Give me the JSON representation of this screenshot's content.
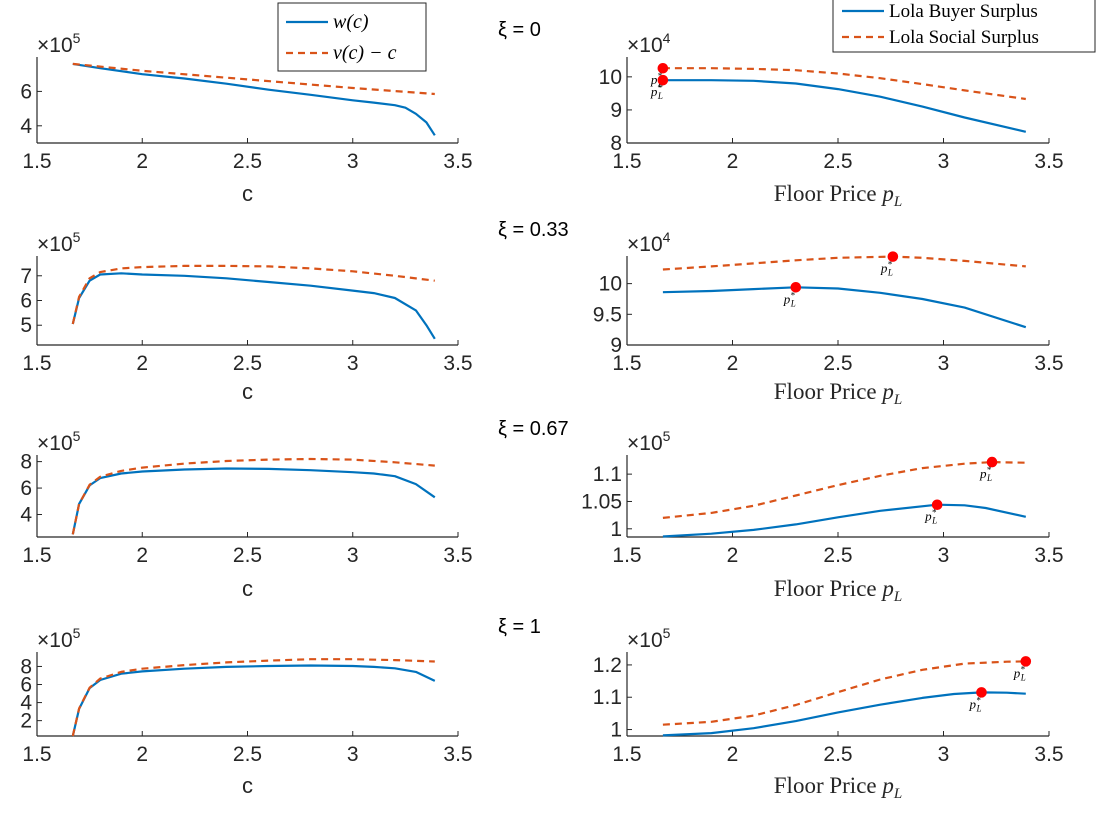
{
  "figure": {
    "colors": {
      "blue": "#0072BD",
      "orange": "#D95319",
      "marker": "#FF0000",
      "axis": "#262626"
    },
    "titles": [
      "ξ = 0",
      "ξ = 0.33",
      "ξ = 0.67",
      "ξ = 1"
    ],
    "left_xlabel": "c",
    "right_xlabel_text": "Floor Price ",
    "right_xlabel_var": "p",
    "right_xlabel_sub": "L",
    "annotation_base": "p",
    "annotation_star": "*",
    "annotation_sub": "L",
    "left_legend": [
      {
        "label": "w(c)",
        "style": "solid",
        "color": "#0072BD"
      },
      {
        "label": "v(c) − c",
        "style": "dashed",
        "color": "#D95319"
      }
    ],
    "right_legend": [
      {
        "label": "Lola Buyer Surplus",
        "style": "solid",
        "color": "#0072BD"
      },
      {
        "label": "Lola Social Surplus",
        "style": "dashed",
        "color": "#D95319"
      }
    ]
  },
  "chart_data": [
    {
      "type": "line",
      "panel": "row1-left",
      "title": "ξ = 0",
      "xlabel": "c",
      "ylabel": "",
      "xlim": [
        1.5,
        3.5
      ],
      "ylim": [
        300000,
        800000
      ],
      "xticks": [
        1.5,
        2,
        2.5,
        3,
        3.5
      ],
      "xtick_labels": [
        "1.5",
        "2",
        "2.5",
        "3",
        "3.5"
      ],
      "yticks": [
        400000,
        600000
      ],
      "ytick_labels": [
        "4",
        "6"
      ],
      "exponent_label": "×10",
      "exponent": "5",
      "series": [
        {
          "name": "w(c)",
          "style": "solid",
          "color": "#0072BD",
          "x": [
            1.67,
            1.8,
            2.0,
            2.2,
            2.4,
            2.6,
            2.8,
            3.0,
            3.1,
            3.2,
            3.25,
            3.3,
            3.35,
            3.39
          ],
          "y": [
            760000,
            735000,
            700000,
            675000,
            645000,
            610000,
            580000,
            548000,
            535000,
            520000,
            505000,
            470000,
            420000,
            345000
          ]
        },
        {
          "name": "v(c) − c",
          "style": "dashed",
          "color": "#D95319",
          "x": [
            1.67,
            2.0,
            2.5,
            3.0,
            3.39
          ],
          "y": [
            760000,
            720000,
            670000,
            620000,
            585000
          ]
        }
      ]
    },
    {
      "type": "line",
      "panel": "row1-right",
      "title": "ξ = 0",
      "xlabel": "Floor Price p_L",
      "ylabel": "",
      "xlim": [
        1.5,
        3.5
      ],
      "ylim": [
        80000,
        106000
      ],
      "xticks": [
        1.5,
        2,
        2.5,
        3,
        3.5
      ],
      "xtick_labels": [
        "1.5",
        "2",
        "2.5",
        "3",
        "3.5"
      ],
      "yticks": [
        80000,
        90000,
        100000
      ],
      "ytick_labels": [
        "8",
        "9",
        "10"
      ],
      "exponent_label": "×10",
      "exponent": "4",
      "series": [
        {
          "name": "Lola Buyer Surplus",
          "style": "solid",
          "color": "#0072BD",
          "x": [
            1.67,
            1.9,
            2.1,
            2.3,
            2.5,
            2.7,
            2.9,
            3.1,
            3.39
          ],
          "y": [
            99000,
            99000,
            98800,
            98000,
            96300,
            94000,
            91000,
            87700,
            83400
          ]
        },
        {
          "name": "Lola Social Surplus",
          "style": "dashed",
          "color": "#D95319",
          "x": [
            1.67,
            1.9,
            2.1,
            2.3,
            2.5,
            2.7,
            2.9,
            3.1,
            3.39
          ],
          "y": [
            102600,
            102600,
            102400,
            102000,
            101000,
            99600,
            97800,
            95900,
            93300
          ]
        }
      ],
      "markers": [
        {
          "x": 1.67,
          "y": 102600
        },
        {
          "x": 1.67,
          "y": 99000
        }
      ]
    },
    {
      "type": "line",
      "panel": "row2-left",
      "title": "ξ = 0.33",
      "xlabel": "c",
      "ylabel": "",
      "xlim": [
        1.5,
        3.5
      ],
      "ylim": [
        420000,
        780000
      ],
      "xticks": [
        1.5,
        2,
        2.5,
        3,
        3.5
      ],
      "xtick_labels": [
        "1.5",
        "2",
        "2.5",
        "3",
        "3.5"
      ],
      "yticks": [
        500000,
        600000,
        700000
      ],
      "ytick_labels": [
        "5",
        "6",
        "7"
      ],
      "exponent_label": "×10",
      "exponent": "5",
      "series": [
        {
          "name": "w(c)",
          "style": "solid",
          "color": "#0072BD",
          "x": [
            1.67,
            1.7,
            1.75,
            1.8,
            1.9,
            2.0,
            2.2,
            2.4,
            2.6,
            2.8,
            3.0,
            3.1,
            3.2,
            3.3,
            3.35,
            3.39
          ],
          "y": [
            505000,
            610000,
            680000,
            705000,
            710000,
            705000,
            700000,
            690000,
            675000,
            660000,
            640000,
            630000,
            610000,
            560000,
            500000,
            445000
          ]
        },
        {
          "name": "v(c) − c",
          "style": "dashed",
          "color": "#D95319",
          "x": [
            1.67,
            1.7,
            1.75,
            1.8,
            1.9,
            2.0,
            2.2,
            2.4,
            2.6,
            2.8,
            3.0,
            3.2,
            3.39
          ],
          "y": [
            505000,
            615000,
            690000,
            715000,
            730000,
            735000,
            740000,
            740000,
            738000,
            730000,
            718000,
            700000,
            680000
          ]
        }
      ]
    },
    {
      "type": "line",
      "panel": "row2-right",
      "title": "ξ = 0.33",
      "xlabel": "Floor Price p_L",
      "ylabel": "",
      "xlim": [
        1.5,
        3.5
      ],
      "ylim": [
        90000,
        104500
      ],
      "xticks": [
        1.5,
        2,
        2.5,
        3,
        3.5
      ],
      "xtick_labels": [
        "1.5",
        "2",
        "2.5",
        "3",
        "3.5"
      ],
      "yticks": [
        90000,
        95000,
        100000
      ],
      "ytick_labels": [
        "9",
        "9.5",
        "10"
      ],
      "exponent_label": "×10",
      "exponent": "4",
      "series": [
        {
          "name": "Lola Buyer Surplus",
          "style": "solid",
          "color": "#0072BD",
          "x": [
            1.67,
            1.9,
            2.1,
            2.3,
            2.5,
            2.7,
            2.9,
            3.1,
            3.39
          ],
          "y": [
            98600,
            98800,
            99100,
            99400,
            99200,
            98500,
            97500,
            96100,
            92900
          ]
        },
        {
          "name": "Lola Social Surplus",
          "style": "dashed",
          "color": "#D95319",
          "x": [
            1.67,
            1.9,
            2.1,
            2.3,
            2.5,
            2.76,
            2.9,
            3.1,
            3.39
          ],
          "y": [
            102300,
            102800,
            103300,
            103800,
            104200,
            104400,
            104200,
            103700,
            102800
          ]
        }
      ],
      "markers": [
        {
          "x": 2.3,
          "y": 99400
        },
        {
          "x": 2.76,
          "y": 104400
        }
      ]
    },
    {
      "type": "line",
      "panel": "row3-left",
      "title": "ξ = 0.67",
      "xlabel": "c",
      "ylabel": "",
      "xlim": [
        1.5,
        3.5
      ],
      "ylim": [
        230000,
        850000
      ],
      "xticks": [
        1.5,
        2,
        2.5,
        3,
        3.5
      ],
      "xtick_labels": [
        "1.5",
        "2",
        "2.5",
        "3",
        "3.5"
      ],
      "yticks": [
        400000,
        600000,
        800000
      ],
      "ytick_labels": [
        "4",
        "6",
        "8"
      ],
      "exponent_label": "×10",
      "exponent": "5",
      "series": [
        {
          "name": "w(c)",
          "style": "solid",
          "color": "#0072BD",
          "x": [
            1.67,
            1.7,
            1.75,
            1.8,
            1.9,
            2.0,
            2.2,
            2.4,
            2.6,
            2.8,
            3.0,
            3.1,
            3.2,
            3.3,
            3.39
          ],
          "y": [
            250000,
            480000,
            620000,
            675000,
            710000,
            725000,
            740000,
            748000,
            745000,
            735000,
            720000,
            710000,
            690000,
            630000,
            530000
          ]
        },
        {
          "name": "v(c) − c",
          "style": "dashed",
          "color": "#D95319",
          "x": [
            1.67,
            1.7,
            1.75,
            1.8,
            1.9,
            2.0,
            2.2,
            2.4,
            2.6,
            2.8,
            3.0,
            3.2,
            3.39
          ],
          "y": [
            250000,
            480000,
            625000,
            685000,
            730000,
            755000,
            785000,
            805000,
            815000,
            820000,
            815000,
            795000,
            770000
          ]
        }
      ]
    },
    {
      "type": "line",
      "panel": "row3-right",
      "title": "ξ = 0.67",
      "xlabel": "Floor Price p_L",
      "ylabel": "",
      "xlim": [
        1.5,
        3.5
      ],
      "ylim": [
        98500,
        113500
      ],
      "xticks": [
        1.5,
        2,
        2.5,
        3,
        3.5
      ],
      "xtick_labels": [
        "1.5",
        "2",
        "2.5",
        "3",
        "3.5"
      ],
      "yticks": [
        100000,
        105000,
        110000
      ],
      "ytick_labels": [
        "1",
        "1.05",
        "1.1"
      ],
      "exponent_label": "×10",
      "exponent": "5",
      "series": [
        {
          "name": "Lola Buyer Surplus",
          "style": "solid",
          "color": "#0072BD",
          "x": [
            1.67,
            1.9,
            2.1,
            2.3,
            2.5,
            2.7,
            2.97,
            3.1,
            3.2,
            3.39
          ],
          "y": [
            98600,
            99100,
            99800,
            100800,
            102100,
            103300,
            104400,
            104300,
            103800,
            102200
          ]
        },
        {
          "name": "Lola Social Surplus",
          "style": "dashed",
          "color": "#D95319",
          "x": [
            1.67,
            1.9,
            2.1,
            2.3,
            2.5,
            2.7,
            2.9,
            3.1,
            3.23,
            3.39
          ],
          "y": [
            102000,
            102900,
            104200,
            106100,
            108000,
            109700,
            111100,
            111900,
            112200,
            112100
          ]
        }
      ],
      "markers": [
        {
          "x": 2.97,
          "y": 104400
        },
        {
          "x": 3.23,
          "y": 112200
        }
      ]
    },
    {
      "type": "line",
      "panel": "row4-left",
      "title": "ξ = 1",
      "xlabel": "c",
      "ylabel": "",
      "xlim": [
        1.5,
        3.5
      ],
      "ylim": [
        30000,
        960000
      ],
      "xticks": [
        1.5,
        2,
        2.5,
        3,
        3.5
      ],
      "xtick_labels": [
        "1.5",
        "2",
        "2.5",
        "3",
        "3.5"
      ],
      "yticks": [
        200000,
        400000,
        600000,
        800000
      ],
      "ytick_labels": [
        "2",
        "4",
        "6",
        "8"
      ],
      "exponent_label": "×10",
      "exponent": "5",
      "series": [
        {
          "name": "w(c)",
          "style": "solid",
          "color": "#0072BD",
          "x": [
            1.67,
            1.7,
            1.75,
            1.8,
            1.9,
            2.0,
            2.2,
            2.4,
            2.6,
            2.8,
            3.0,
            3.1,
            3.2,
            3.3,
            3.39
          ],
          "y": [
            30000,
            330000,
            560000,
            650000,
            720000,
            745000,
            775000,
            795000,
            805000,
            810000,
            805000,
            795000,
            780000,
            740000,
            640000
          ]
        },
        {
          "name": "v(c) − c",
          "style": "dashed",
          "color": "#D95319",
          "x": [
            1.67,
            1.7,
            1.75,
            1.8,
            1.9,
            2.0,
            2.2,
            2.4,
            2.6,
            2.8,
            3.0,
            3.2,
            3.39
          ],
          "y": [
            30000,
            335000,
            565000,
            665000,
            740000,
            775000,
            815000,
            845000,
            865000,
            880000,
            880000,
            870000,
            855000
          ]
        }
      ]
    },
    {
      "type": "line",
      "panel": "row4-right",
      "title": "ξ = 1",
      "xlabel": "Floor Price p_L",
      "ylabel": "",
      "xlim": [
        1.5,
        3.5
      ],
      "ylim": [
        98000,
        124000
      ],
      "xticks": [
        1.5,
        2,
        2.5,
        3,
        3.5
      ],
      "xtick_labels": [
        "1.5",
        "2",
        "2.5",
        "3",
        "3.5"
      ],
      "yticks": [
        100000,
        110000,
        120000
      ],
      "ytick_labels": [
        "1",
        "1.1",
        "1.2"
      ],
      "exponent_label": "×10",
      "exponent": "5",
      "series": [
        {
          "name": "Lola Buyer Surplus",
          "style": "solid",
          "color": "#0072BD",
          "x": [
            1.67,
            1.9,
            2.1,
            2.3,
            2.5,
            2.7,
            2.9,
            3.05,
            3.18,
            3.3,
            3.39
          ],
          "y": [
            98200,
            98900,
            100400,
            102600,
            105300,
            107700,
            109800,
            111000,
            111500,
            111400,
            111100
          ]
        },
        {
          "name": "Lola Social Surplus",
          "style": "dashed",
          "color": "#D95319",
          "x": [
            1.67,
            1.9,
            2.1,
            2.3,
            2.5,
            2.7,
            2.9,
            3.1,
            3.3,
            3.39
          ],
          "y": [
            101500,
            102400,
            104300,
            107600,
            111600,
            115500,
            118500,
            120400,
            121000,
            121100
          ]
        }
      ],
      "markers": [
        {
          "x": 3.18,
          "y": 111500
        },
        {
          "x": 3.39,
          "y": 121100
        }
      ]
    }
  ]
}
